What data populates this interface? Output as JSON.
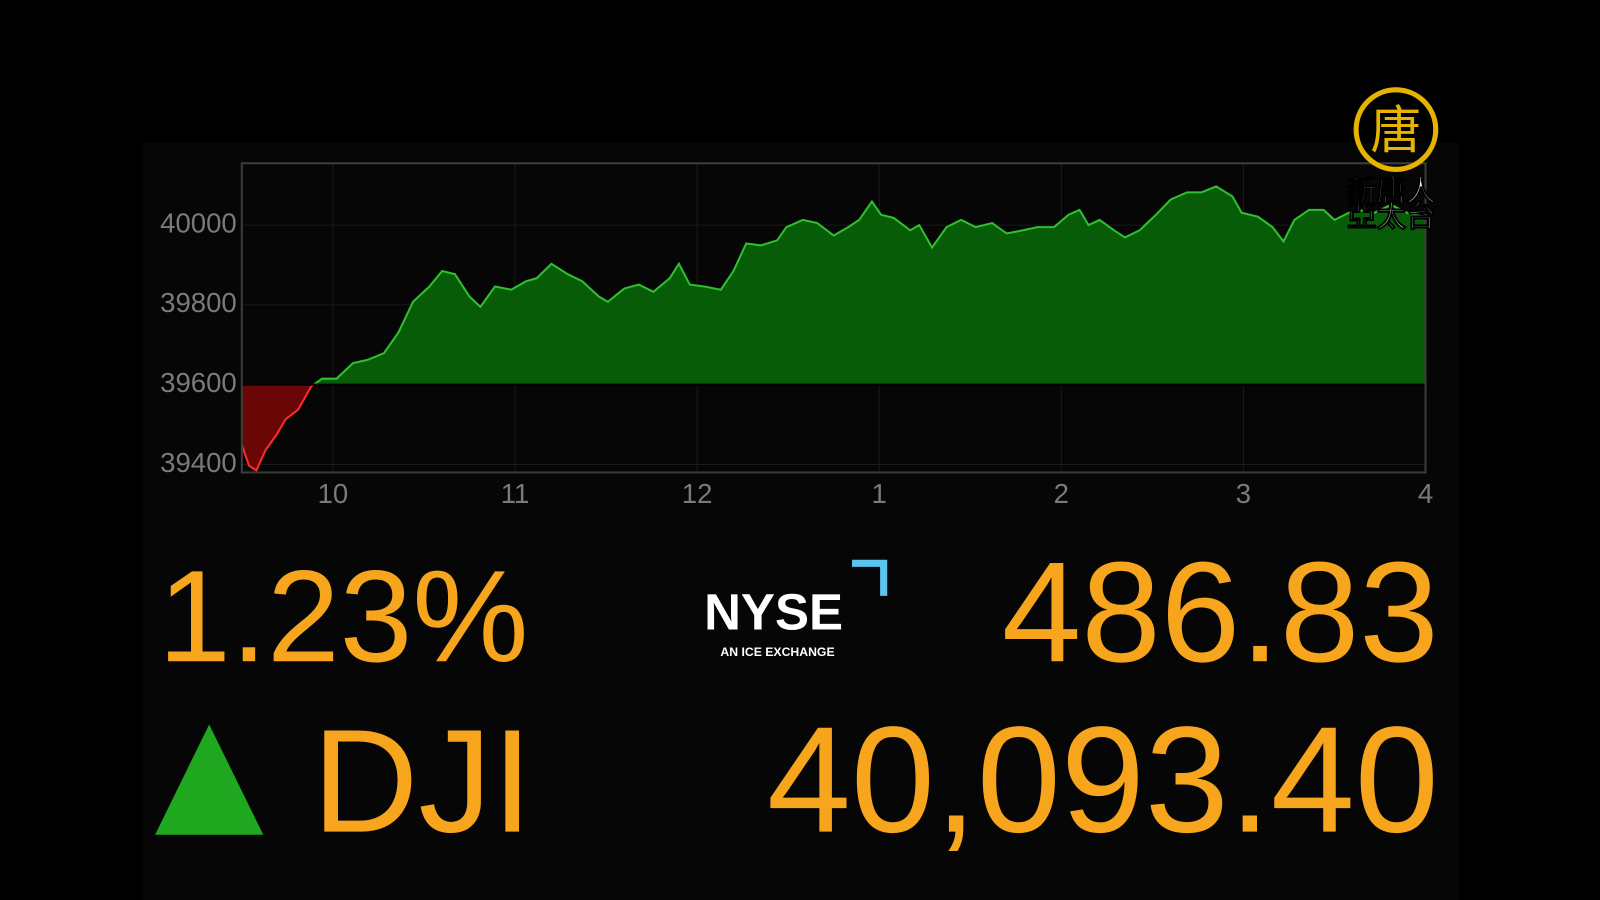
{
  "chart_data": {
    "type": "area",
    "x": [
      9.5,
      9.54,
      9.58,
      9.63,
      9.69,
      9.74,
      9.81,
      9.88,
      9.94,
      10.02,
      10.11,
      10.19,
      10.28,
      10.36,
      10.44,
      10.53,
      10.6,
      10.67,
      10.75,
      10.81,
      10.89,
      10.98,
      11.06,
      11.12,
      11.2,
      11.29,
      11.37,
      11.46,
      11.51,
      11.6,
      11.68,
      11.76,
      11.85,
      11.9,
      11.96,
      12.04,
      12.13,
      12.2,
      12.27,
      12.35,
      12.44,
      12.49,
      12.58,
      12.66,
      12.75,
      12.83,
      12.89,
      12.96,
      13.01,
      13.08,
      13.17,
      13.22,
      13.29,
      13.37,
      13.45,
      13.53,
      13.62,
      13.7,
      13.79,
      13.87,
      13.96,
      14.04,
      14.1,
      14.15,
      14.21,
      14.29,
      14.35,
      14.43,
      14.52,
      14.6,
      14.69,
      14.77,
      14.85,
      14.94,
      14.99,
      15.08,
      15.16,
      15.22,
      15.28,
      15.36,
      15.44,
      15.5,
      15.58,
      15.67,
      15.72,
      15.81,
      15.92,
      16
    ],
    "values": [
      39449,
      39397,
      39385,
      39436,
      39474,
      39513,
      39538,
      39595,
      39615,
      39615,
      39654,
      39662,
      39679,
      39731,
      39808,
      39846,
      39885,
      39877,
      39821,
      39795,
      39846,
      39838,
      39859,
      39867,
      39903,
      39877,
      39859,
      39821,
      39808,
      39841,
      39851,
      39833,
      39867,
      39903,
      39851,
      39846,
      39838,
      39885,
      39954,
      39949,
      39962,
      39995,
      40013,
      40005,
      39974,
      39995,
      40013,
      40059,
      40026,
      40018,
      39987,
      40000,
      39944,
      39995,
      40013,
      39995,
      40005,
      39979,
      39987,
      39995,
      39995,
      40026,
      40038,
      40000,
      40013,
      39987,
      39969,
      39987,
      40026,
      40064,
      40082,
      40082,
      40097,
      40072,
      40031,
      40021,
      39995,
      39959,
      40013,
      40038,
      40038,
      40013,
      40031,
      40038,
      40031,
      40051,
      40026,
      40021
    ],
    "baseline": 39600,
    "line_color": "#2fbf2f",
    "area_color": "#075c07",
    "negative_line_color": "#ff2a2a",
    "negative_area_color": "#6a0606",
    "xlim": [
      9.5,
      16
    ],
    "xticks": [
      10,
      11,
      12,
      {
        "value": 13,
        "label": "1"
      },
      {
        "value": 14,
        "label": "2"
      },
      {
        "value": 15,
        "label": "3"
      },
      {
        "value": 16,
        "label": "4"
      }
    ],
    "ylim": [
      39380,
      40155
    ],
    "yticks": [
      39400,
      39600,
      39800,
      40000
    ],
    "grid": true
  },
  "quote": {
    "change_percent": "1.23%",
    "symbol": "DJI",
    "change": "486.83",
    "price": "40,093.40"
  },
  "exchange_logo": {
    "name": "NYSE",
    "tagline": "AN ICE EXCHANGE"
  },
  "channel_logo": {
    "emblem": "唐",
    "line1": "新唐人",
    "line2": "亞太台"
  }
}
